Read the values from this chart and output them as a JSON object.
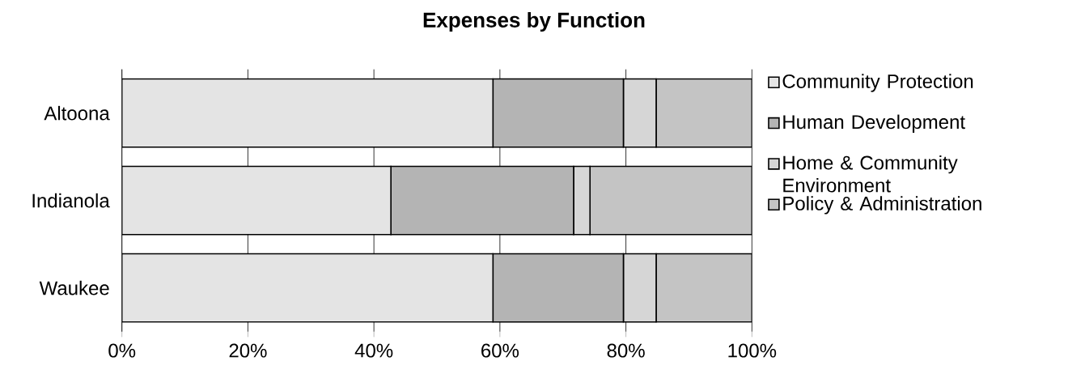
{
  "chart_data": {
    "type": "bar",
    "orientation": "horizontal",
    "stacked": true,
    "title": "Expenses by Function",
    "categories": [
      "Altoona",
      "Indianola",
      "Waukee"
    ],
    "series": [
      {
        "name": "Community Protection",
        "color": "#e4e4e4",
        "values": [
          58.9,
          42.7,
          58.9
        ]
      },
      {
        "name": "Human Development",
        "color": "#b4b4b4",
        "values": [
          20.7,
          29.0,
          20.7
        ]
      },
      {
        "name": "Home & Community Environment",
        "color": "#d6d6d6",
        "values": [
          5.2,
          2.6,
          5.2
        ]
      },
      {
        "name": "Policy & Administration",
        "color": "#c4c4c4",
        "values": [
          15.2,
          25.7,
          15.2
        ]
      }
    ],
    "xlim": [
      0,
      100
    ],
    "xticks": [
      {
        "value": 0,
        "label": "0%"
      },
      {
        "value": 20,
        "label": "20%"
      },
      {
        "value": 40,
        "label": "40%"
      },
      {
        "value": 60,
        "label": "60%"
      },
      {
        "value": 80,
        "label": "80%"
      },
      {
        "value": 100,
        "label": "100%"
      }
    ],
    "grid": "x",
    "legend": "right"
  }
}
